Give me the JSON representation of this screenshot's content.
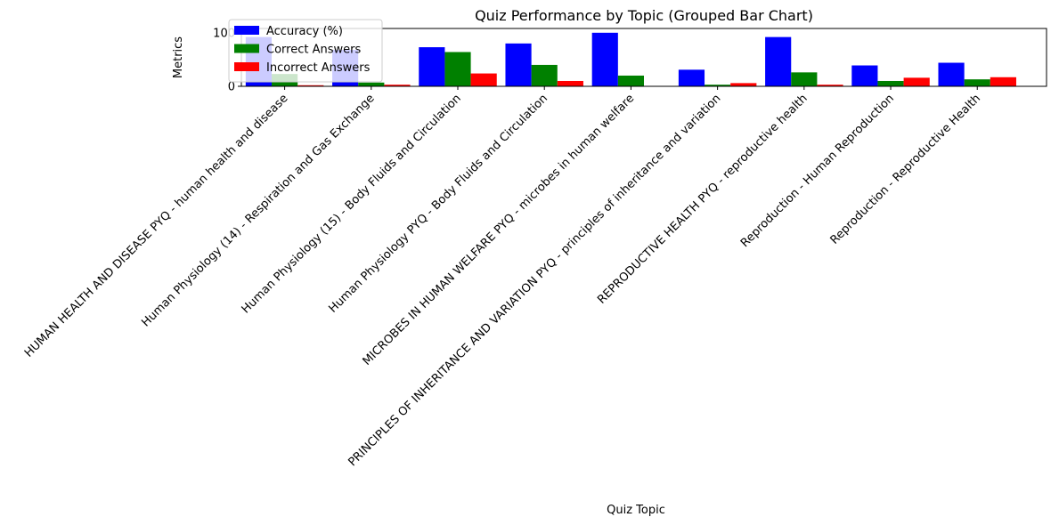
{
  "chart_data": {
    "type": "bar",
    "title": "Quiz Performance by Topic (Grouped Bar Chart)",
    "xlabel": "Quiz Topic",
    "ylabel": "Metrics",
    "ylim": [
      0,
      108
    ],
    "yticks": [
      0,
      100
    ],
    "grid": false,
    "legend_position": "upper-left",
    "categories": [
      "HUMAN HEALTH AND DISEASE PYQ - human health and disease",
      "Human Physiology (14) - Respiration and Gas Exchange",
      "Human Physiology (15) - Body Fluids and Circulation",
      "Human Physiology PYQ - Body Fluids and Circulation",
      "MICROBES IN HUMAN WELFARE  PYQ - microbes in human welfare",
      "PRINCIPLES OF INHERITANCE AND VARIATION PYQ - principles of inheritance and variation",
      "REPRODUCTIVE HEALTH PYQ - reproductive health",
      "Reproduction - Human Reproduction",
      "Reproduction - Reproductive Health"
    ],
    "series": [
      {
        "name": "Accuracy (%)",
        "color": "#0000ff",
        "values": [
          92,
          68,
          73,
          80,
          100,
          31,
          92,
          39,
          44
        ]
      },
      {
        "name": "Correct Answers",
        "color": "#008000",
        "values": [
          23,
          7,
          64,
          40,
          20,
          3,
          26,
          10,
          13
        ]
      },
      {
        "name": "Incorrect Answers",
        "color": "#ff0000",
        "values": [
          2,
          3,
          24,
          10,
          0,
          6,
          3,
          16,
          17
        ]
      }
    ]
  }
}
